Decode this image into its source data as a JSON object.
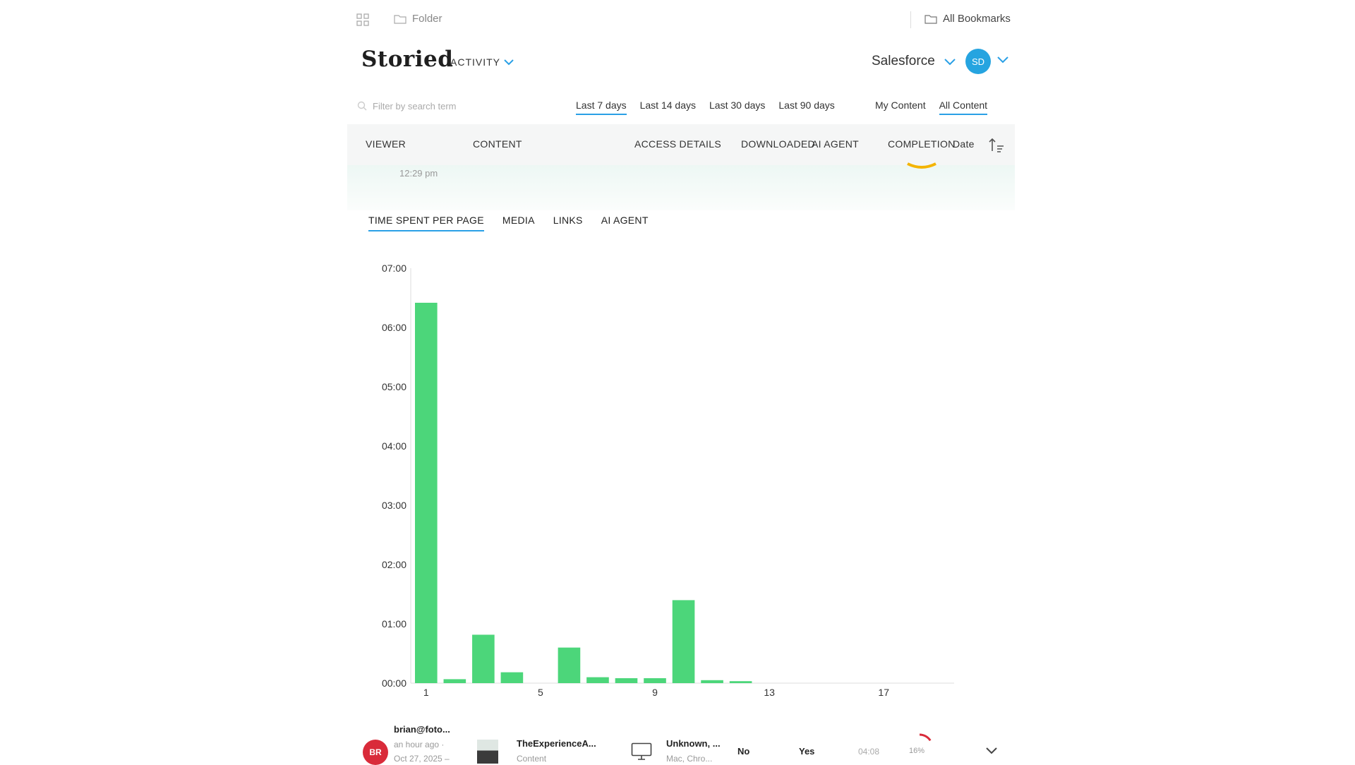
{
  "bookmarks_bar": {
    "folder_label": "Folder",
    "all_bookmarks_label": "All Bookmarks"
  },
  "header": {
    "logo": "Storied",
    "section": "ACTIVITY",
    "crm": "Salesforce",
    "user_initials": "SD"
  },
  "filters": {
    "search_placeholder": "Filter by search term",
    "ranges": [
      "Last 7 days",
      "Last 14 days",
      "Last 30 days",
      "Last 90 days"
    ],
    "active_range": "Last 7 days",
    "scopes": [
      "My Content",
      "All Content"
    ],
    "active_scope": "All Content"
  },
  "table": {
    "columns": {
      "viewer": "VIEWER",
      "content": "CONTENT",
      "access": "ACCESS DETAILS",
      "downloaded": "DOWNLOADED",
      "ai_agent": "AI AGENT",
      "completion": "COMPLETION",
      "date": "Date"
    },
    "expanded_row_time": "12:29 pm"
  },
  "detail_tabs": {
    "items": [
      "TIME SPENT PER PAGE",
      "MEDIA",
      "LINKS",
      "AI AGENT"
    ],
    "active": "TIME SPENT PER PAGE"
  },
  "chart_data": {
    "type": "bar",
    "title": "",
    "xlabel": "",
    "ylabel": "",
    "categories": [
      1,
      2,
      3,
      4,
      5,
      6,
      7,
      8,
      9,
      10,
      11,
      12,
      13,
      14,
      15,
      16,
      17,
      18,
      19
    ],
    "values_seconds": [
      385,
      4,
      49,
      11,
      0,
      36,
      6,
      5,
      5,
      84,
      3,
      2,
      0,
      0,
      0,
      0,
      0,
      0,
      0
    ],
    "y_ticks": [
      "00:00",
      "01:00",
      "02:00",
      "03:00",
      "04:00",
      "05:00",
      "06:00",
      "07:00"
    ],
    "x_tick_labels": [
      "1",
      "5",
      "9",
      "13",
      "17"
    ],
    "ylim_seconds": [
      0,
      420
    ],
    "bar_color": "#4cd67a",
    "grid": false
  },
  "bottom_row": {
    "initials": "BR",
    "email": "brian@foto...",
    "ago": "an hour ago ·",
    "date": "Oct 27, 2025 –",
    "content_title": "TheExperienceA...",
    "content_type": "Content",
    "location": "Unknown, ...",
    "device": "Mac, Chro...",
    "downloaded": "No",
    "ai_agent": "Yes",
    "duration": "04:08",
    "completion": "16%",
    "completion_value": 0.16
  },
  "colors": {
    "accent": "#2aa0e6",
    "avatar_user": "#26a4e0",
    "avatar_viewer": "#d92b3a",
    "completion_ring": "#d92b3a"
  }
}
